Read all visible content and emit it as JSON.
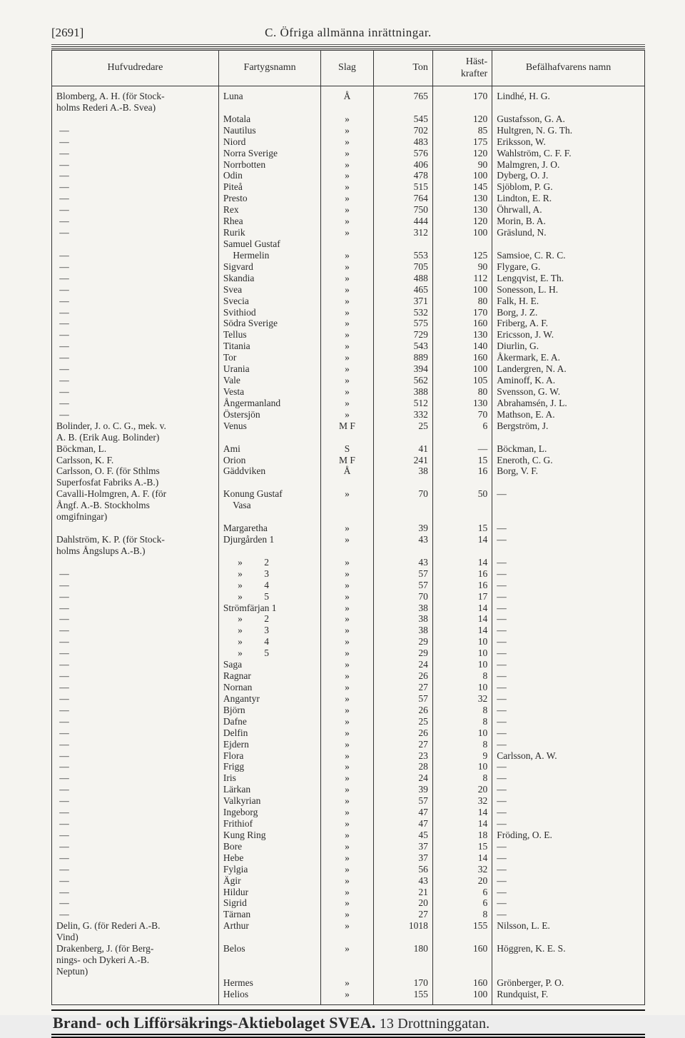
{
  "header": {
    "page_number": "[2691]",
    "heading": "C.  Öfriga allmänna inrättningar."
  },
  "columns": {
    "hufvudredare": "Hufvudredare",
    "fartygsnamn": "Fartygsnamn",
    "slag": "Slag",
    "ton": "Ton",
    "hastkrafter": "Häst-\nkrafter",
    "befalhafvarens_namn": "Befälhafvarens namn"
  },
  "rows": [
    {
      "h": "Blomberg, A. H. (för Stock-\nholms Rederi A.-B. Svea)",
      "n": "Luna",
      "s": "Å",
      "t": "765",
      "hk": "170",
      "b": "Lindhé, H. G."
    },
    {
      "h": "",
      "n": "Motala",
      "s": "»",
      "t": "545",
      "hk": "120",
      "b": "Gustafsson, G. A."
    },
    {
      "h": "—",
      "n": "Nautilus",
      "s": "»",
      "t": "702",
      "hk": "85",
      "b": "Hultgren, N. G. Th."
    },
    {
      "h": "—",
      "n": "Niord",
      "s": "»",
      "t": "483",
      "hk": "175",
      "b": "Eriksson, W."
    },
    {
      "h": "—",
      "n": "Norra Sverige",
      "s": "»",
      "t": "576",
      "hk": "120",
      "b": "Wahlström, C. F. F."
    },
    {
      "h": "—",
      "n": "Norrbotten",
      "s": "»",
      "t": "406",
      "hk": "90",
      "b": "Malmgren, J. O."
    },
    {
      "h": "—",
      "n": "Odin",
      "s": "»",
      "t": "478",
      "hk": "100",
      "b": "Dyberg, O. J."
    },
    {
      "h": "—",
      "n": "Piteå",
      "s": "»",
      "t": "515",
      "hk": "145",
      "b": "Sjöblom, P. G."
    },
    {
      "h": "—",
      "n": "Presto",
      "s": "»",
      "t": "764",
      "hk": "130",
      "b": "Lindton, E. R."
    },
    {
      "h": "—",
      "n": "Rex",
      "s": "»",
      "t": "750",
      "hk": "130",
      "b": "Öhrwall, A."
    },
    {
      "h": "—",
      "n": "Rhea",
      "s": "»",
      "t": "444",
      "hk": "120",
      "b": "Morin, B. A."
    },
    {
      "h": "—",
      "n": "Rurik",
      "s": "»",
      "t": "312",
      "hk": "100",
      "b": "Gräslund, N."
    },
    {
      "h": "",
      "n": "Samuel Gustaf",
      "s": "",
      "t": "",
      "hk": "",
      "b": ""
    },
    {
      "h": "—",
      "n": "    Hermelin",
      "s": "»",
      "t": "553",
      "hk": "125",
      "b": "Samsioe, C. R. C."
    },
    {
      "h": "—",
      "n": "Sigvard",
      "s": "»",
      "t": "705",
      "hk": "90",
      "b": "Flygare, G."
    },
    {
      "h": "—",
      "n": "Skandia",
      "s": "»",
      "t": "488",
      "hk": "112",
      "b": "Lengqvist, E. Th."
    },
    {
      "h": "—",
      "n": "Svea",
      "s": "»",
      "t": "465",
      "hk": "100",
      "b": "Sonesson, L. H."
    },
    {
      "h": "—",
      "n": "Svecia",
      "s": "»",
      "t": "371",
      "hk": "80",
      "b": "Falk, H. E."
    },
    {
      "h": "—",
      "n": "Svithiod",
      "s": "»",
      "t": "532",
      "hk": "170",
      "b": "Borg, J. Z."
    },
    {
      "h": "—",
      "n": "Södra Sverige",
      "s": "»",
      "t": "575",
      "hk": "160",
      "b": "Friberg, A. F."
    },
    {
      "h": "—",
      "n": "Tellus",
      "s": "»",
      "t": "729",
      "hk": "130",
      "b": "Ericsson, J. W."
    },
    {
      "h": "—",
      "n": "Titania",
      "s": "»",
      "t": "543",
      "hk": "140",
      "b": "Diurlin, G."
    },
    {
      "h": "—",
      "n": "Tor",
      "s": "»",
      "t": "889",
      "hk": "160",
      "b": "Åkermark, E. A."
    },
    {
      "h": "—",
      "n": "Urania",
      "s": "»",
      "t": "394",
      "hk": "100",
      "b": "Landergren, N. A."
    },
    {
      "h": "—",
      "n": "Vale",
      "s": "»",
      "t": "562",
      "hk": "105",
      "b": "Aminoff, K. A."
    },
    {
      "h": "—",
      "n": "Vesta",
      "s": "»",
      "t": "388",
      "hk": "80",
      "b": "Svensson, G. W."
    },
    {
      "h": "—",
      "n": "Ångermanland",
      "s": "»",
      "t": "512",
      "hk": "130",
      "b": "Abrahamsén, J. L."
    },
    {
      "h": "—",
      "n": "Östersjön",
      "s": "»",
      "t": "332",
      "hk": "70",
      "b": "Mathson, E. A."
    },
    {
      "h": "Bolinder, J. o. C. G., mek. v.\nA. B. (Erik Aug. Bolinder)",
      "n": "Venus",
      "s": "M F",
      "t": "25",
      "hk": "6",
      "b": "Bergström, J."
    },
    {
      "h": "Böckman, L.",
      "n": "Ami",
      "s": "S",
      "t": "41",
      "hk": "—",
      "b": "Böckman, L."
    },
    {
      "h": "Carlsson, K. F.",
      "n": "Orion",
      "s": "M F",
      "t": "241",
      "hk": "15",
      "b": "Eneroth, C. G."
    },
    {
      "h": "Carlsson, O. F. (för Sthlms\nSuperfosfat Fabriks A.-B.)",
      "n": "Gäddviken",
      "s": "Å",
      "t": "38",
      "hk": "16",
      "b": "Borg, V. F."
    },
    {
      "h": "Cavalli-Holmgren, A. F. (för\nÅngf. A.-B. Stockholms\nomgifningar)",
      "n": "Konung Gustaf\n    Vasa",
      "s": "»",
      "t": "70",
      "hk": "50",
      "b": "—"
    },
    {
      "h": "",
      "n": "Margaretha",
      "s": "»",
      "t": "39",
      "hk": "15",
      "b": "—"
    },
    {
      "h": "Dahlström, K. P. (för Stock-\nholms Ångslups A.-B.)",
      "n": "Djurgården 1",
      "s": "»",
      "t": "43",
      "hk": "14",
      "b": "—"
    },
    {
      "h": "",
      "n": "      »         2",
      "s": "»",
      "t": "43",
      "hk": "14",
      "b": "—"
    },
    {
      "h": "—",
      "n": "      »         3",
      "s": "»",
      "t": "57",
      "hk": "16",
      "b": "—"
    },
    {
      "h": "—",
      "n": "      »         4",
      "s": "»",
      "t": "57",
      "hk": "16",
      "b": "—"
    },
    {
      "h": "—",
      "n": "      »         5",
      "s": "»",
      "t": "70",
      "hk": "17",
      "b": "—"
    },
    {
      "h": "—",
      "n": "Strömfärjan 1",
      "s": "»",
      "t": "38",
      "hk": "14",
      "b": "—"
    },
    {
      "h": "—",
      "n": "      »         2",
      "s": "»",
      "t": "38",
      "hk": "14",
      "b": "—"
    },
    {
      "h": "—",
      "n": "      »         3",
      "s": "»",
      "t": "38",
      "hk": "14",
      "b": "—"
    },
    {
      "h": "—",
      "n": "      »         4",
      "s": "»",
      "t": "29",
      "hk": "10",
      "b": "—"
    },
    {
      "h": "—",
      "n": "      »         5",
      "s": "»",
      "t": "29",
      "hk": "10",
      "b": "—"
    },
    {
      "h": "—",
      "n": "Saga",
      "s": "»",
      "t": "24",
      "hk": "10",
      "b": "—"
    },
    {
      "h": "—",
      "n": "Ragnar",
      "s": "»",
      "t": "26",
      "hk": "8",
      "b": "—"
    },
    {
      "h": "—",
      "n": "Nornan",
      "s": "»",
      "t": "27",
      "hk": "10",
      "b": "—"
    },
    {
      "h": "—",
      "n": "Angantyr",
      "s": "»",
      "t": "57",
      "hk": "32",
      "b": "—"
    },
    {
      "h": "—",
      "n": "Björn",
      "s": "»",
      "t": "26",
      "hk": "8",
      "b": "—"
    },
    {
      "h": "—",
      "n": "Dafne",
      "s": "»",
      "t": "25",
      "hk": "8",
      "b": "—"
    },
    {
      "h": "—",
      "n": "Delfin",
      "s": "»",
      "t": "26",
      "hk": "10",
      "b": "—"
    },
    {
      "h": "—",
      "n": "Ejdern",
      "s": "»",
      "t": "27",
      "hk": "8",
      "b": "—"
    },
    {
      "h": "—",
      "n": "Flora",
      "s": "»",
      "t": "23",
      "hk": "9",
      "b": "Carlsson, A. W."
    },
    {
      "h": "—",
      "n": "Frigg",
      "s": "»",
      "t": "28",
      "hk": "10",
      "b": "—"
    },
    {
      "h": "—",
      "n": "Iris",
      "s": "»",
      "t": "24",
      "hk": "8",
      "b": "—"
    },
    {
      "h": "—",
      "n": "Lärkan",
      "s": "»",
      "t": "39",
      "hk": "20",
      "b": "—"
    },
    {
      "h": "—",
      "n": "Valkyrian",
      "s": "»",
      "t": "57",
      "hk": "32",
      "b": "—"
    },
    {
      "h": "—",
      "n": "Ingeborg",
      "s": "»",
      "t": "47",
      "hk": "14",
      "b": "—"
    },
    {
      "h": "—",
      "n": "Frithiof",
      "s": "»",
      "t": "47",
      "hk": "14",
      "b": "—"
    },
    {
      "h": "—",
      "n": "Kung Ring",
      "s": "»",
      "t": "45",
      "hk": "18",
      "b": "Fröding, O. E."
    },
    {
      "h": "—",
      "n": "Bore",
      "s": "»",
      "t": "37",
      "hk": "15",
      "b": "—"
    },
    {
      "h": "—",
      "n": "Hebe",
      "s": "»",
      "t": "37",
      "hk": "14",
      "b": "—"
    },
    {
      "h": "—",
      "n": "Fylgia",
      "s": "»",
      "t": "56",
      "hk": "32",
      "b": "—"
    },
    {
      "h": "—",
      "n": "Ägir",
      "s": "»",
      "t": "43",
      "hk": "20",
      "b": "—"
    },
    {
      "h": "—",
      "n": "Hildur",
      "s": "»",
      "t": "21",
      "hk": "6",
      "b": "—"
    },
    {
      "h": "—",
      "n": "Sigrid",
      "s": "»",
      "t": "20",
      "hk": "6",
      "b": "—"
    },
    {
      "h": "—",
      "n": "Tärnan",
      "s": "»",
      "t": "27",
      "hk": "8",
      "b": "—"
    },
    {
      "h": "Delin, G. (för Rederi A.-B.\nVind)",
      "n": "Arthur",
      "s": "»",
      "t": "1018",
      "hk": "155",
      "b": "Nilsson, L. E."
    },
    {
      "h": "Drakenberg, J. (för Berg-\nnings- och Dykeri A.-B.\nNeptun)",
      "n": "Belos",
      "s": "»",
      "t": "180",
      "hk": "160",
      "b": "Höggren, K. E. S."
    },
    {
      "h": "",
      "n": "Hermes",
      "s": "»",
      "t": "170",
      "hk": "160",
      "b": "Grönberger, P. O."
    },
    {
      "h": "",
      "n": "Helios",
      "s": "»",
      "t": "155",
      "hk": "100",
      "b": "Rundquist, F."
    }
  ],
  "footer": {
    "bold": "Brand- och Lifförsäkrings-Aktiebolaget SVEA.",
    "rest": " 13 Drottninggatan."
  }
}
